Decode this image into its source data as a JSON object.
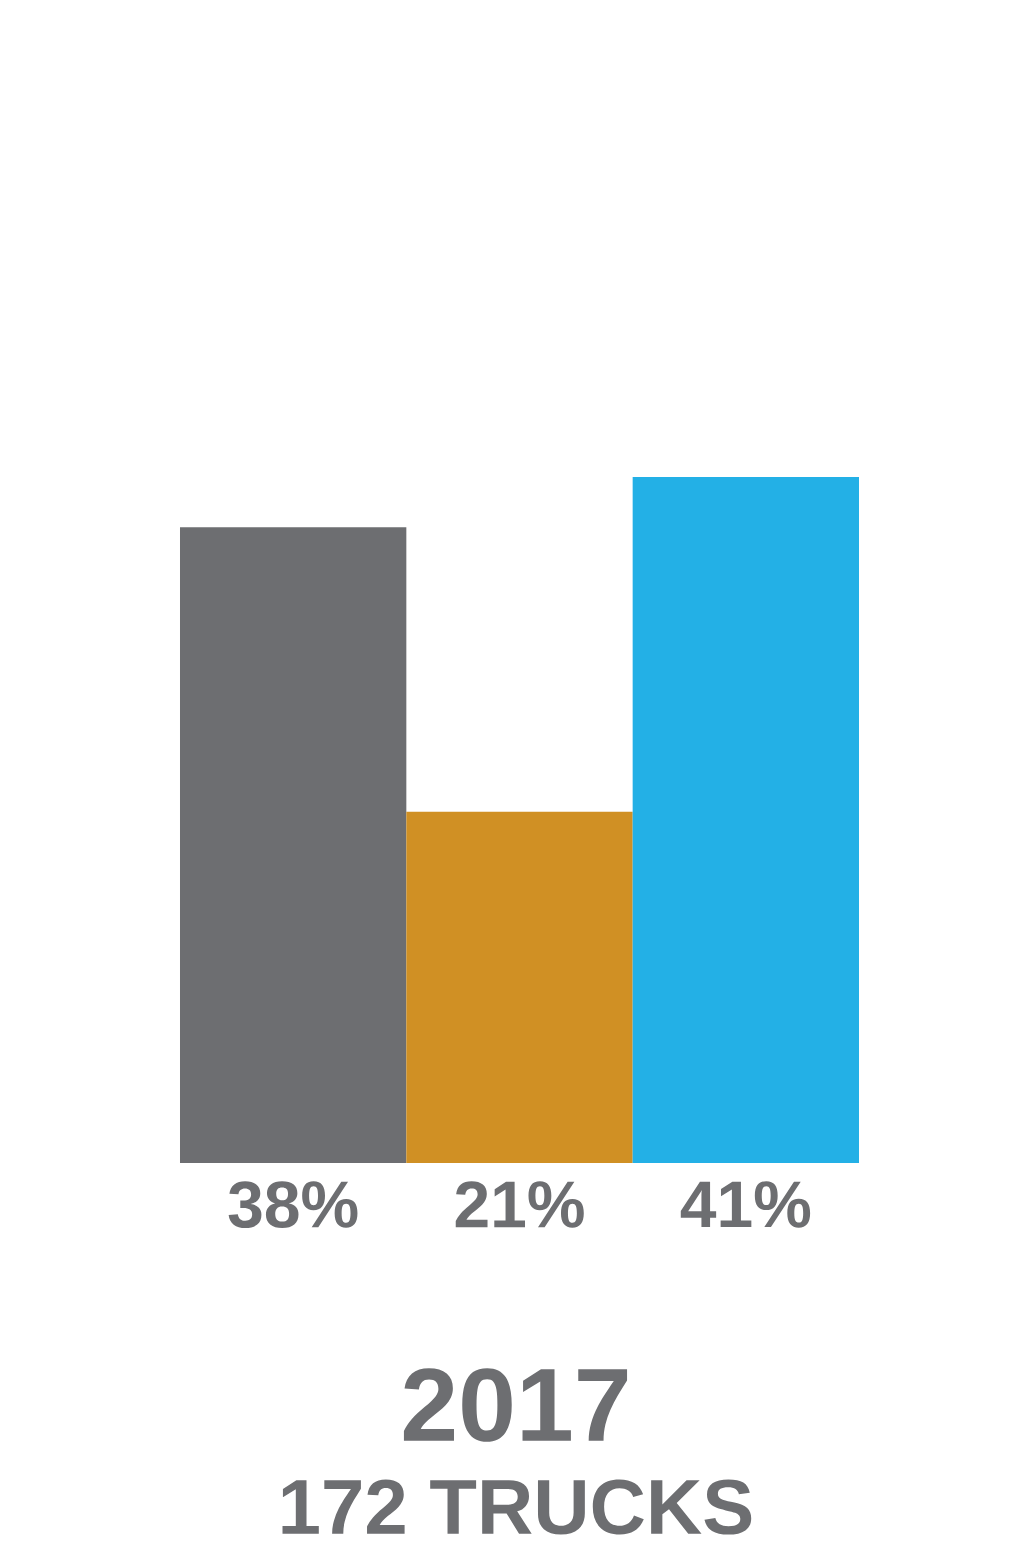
{
  "chart_data": {
    "type": "bar",
    "title": "2017",
    "subtitle": "172 TRUCKS",
    "categories": [
      null,
      null,
      null
    ],
    "values": [
      38,
      21,
      41
    ],
    "colors": [
      "#6d6e71",
      "#d09024",
      "#23b0e6"
    ],
    "value_labels": [
      "38%",
      "21%",
      "41%"
    ]
  }
}
